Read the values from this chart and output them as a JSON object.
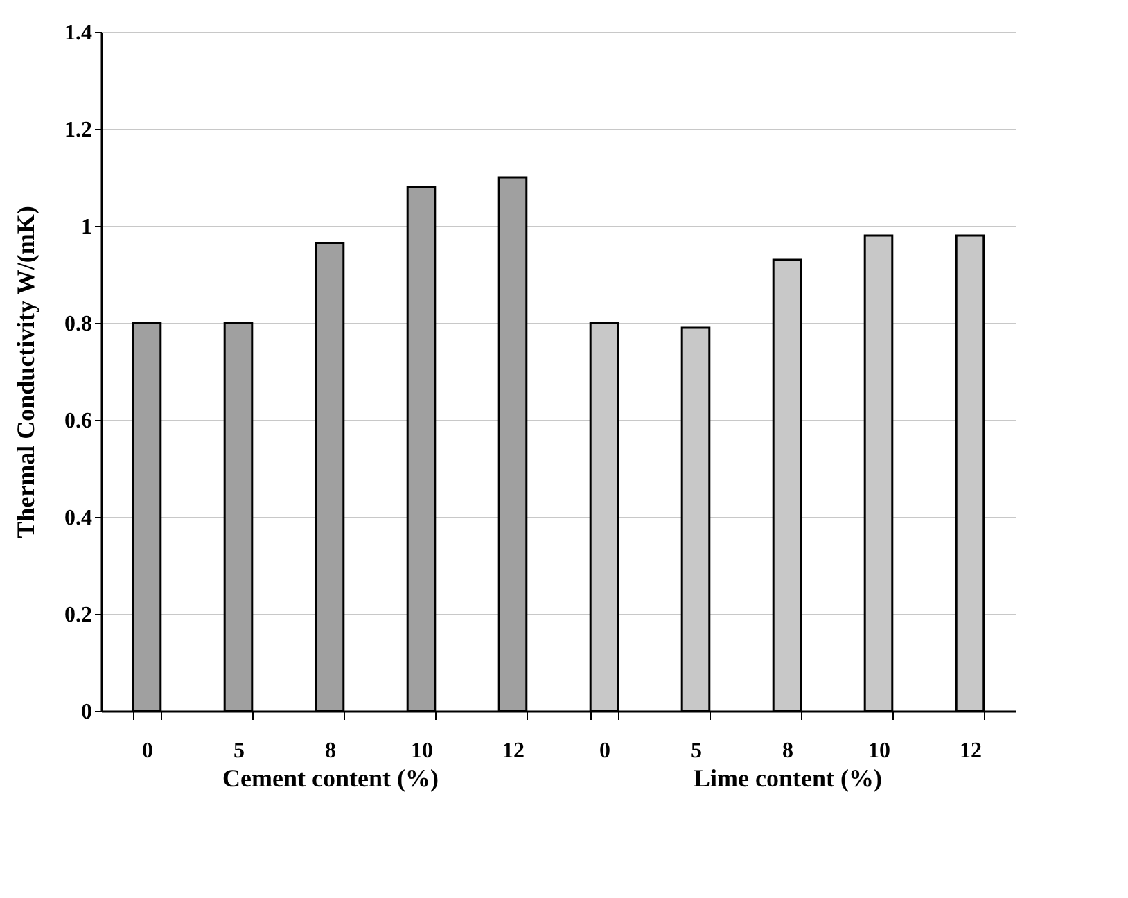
{
  "chart_data": [
    {
      "type": "bar",
      "categories": [
        "0",
        "5",
        "8",
        "10",
        "12"
      ],
      "values": [
        0.8,
        0.8,
        0.965,
        1.08,
        1.1
      ],
      "color": "#a0a0a0",
      "xlabel": "Cement content (%)",
      "ylabel": "Thermal Conductivity   W/(mK)",
      "ylim": [
        0,
        1.4
      ],
      "yticks": [
        0,
        0.2,
        0.4,
        0.6,
        0.8,
        1,
        1.2,
        1.4
      ],
      "grid": "y"
    },
    {
      "type": "bar",
      "categories": [
        "0",
        "5",
        "8",
        "10",
        "12"
      ],
      "values": [
        0.8,
        0.79,
        0.93,
        0.98,
        0.98
      ],
      "color": "#c8c8c8",
      "xlabel": "Lime content (%)",
      "ylim": [
        0,
        1.4
      ],
      "yticks": [
        0,
        0.2,
        0.4,
        0.6,
        0.8,
        1,
        1.2,
        1.4
      ],
      "grid": "y",
      "tick_labels": "x"
    }
  ]
}
